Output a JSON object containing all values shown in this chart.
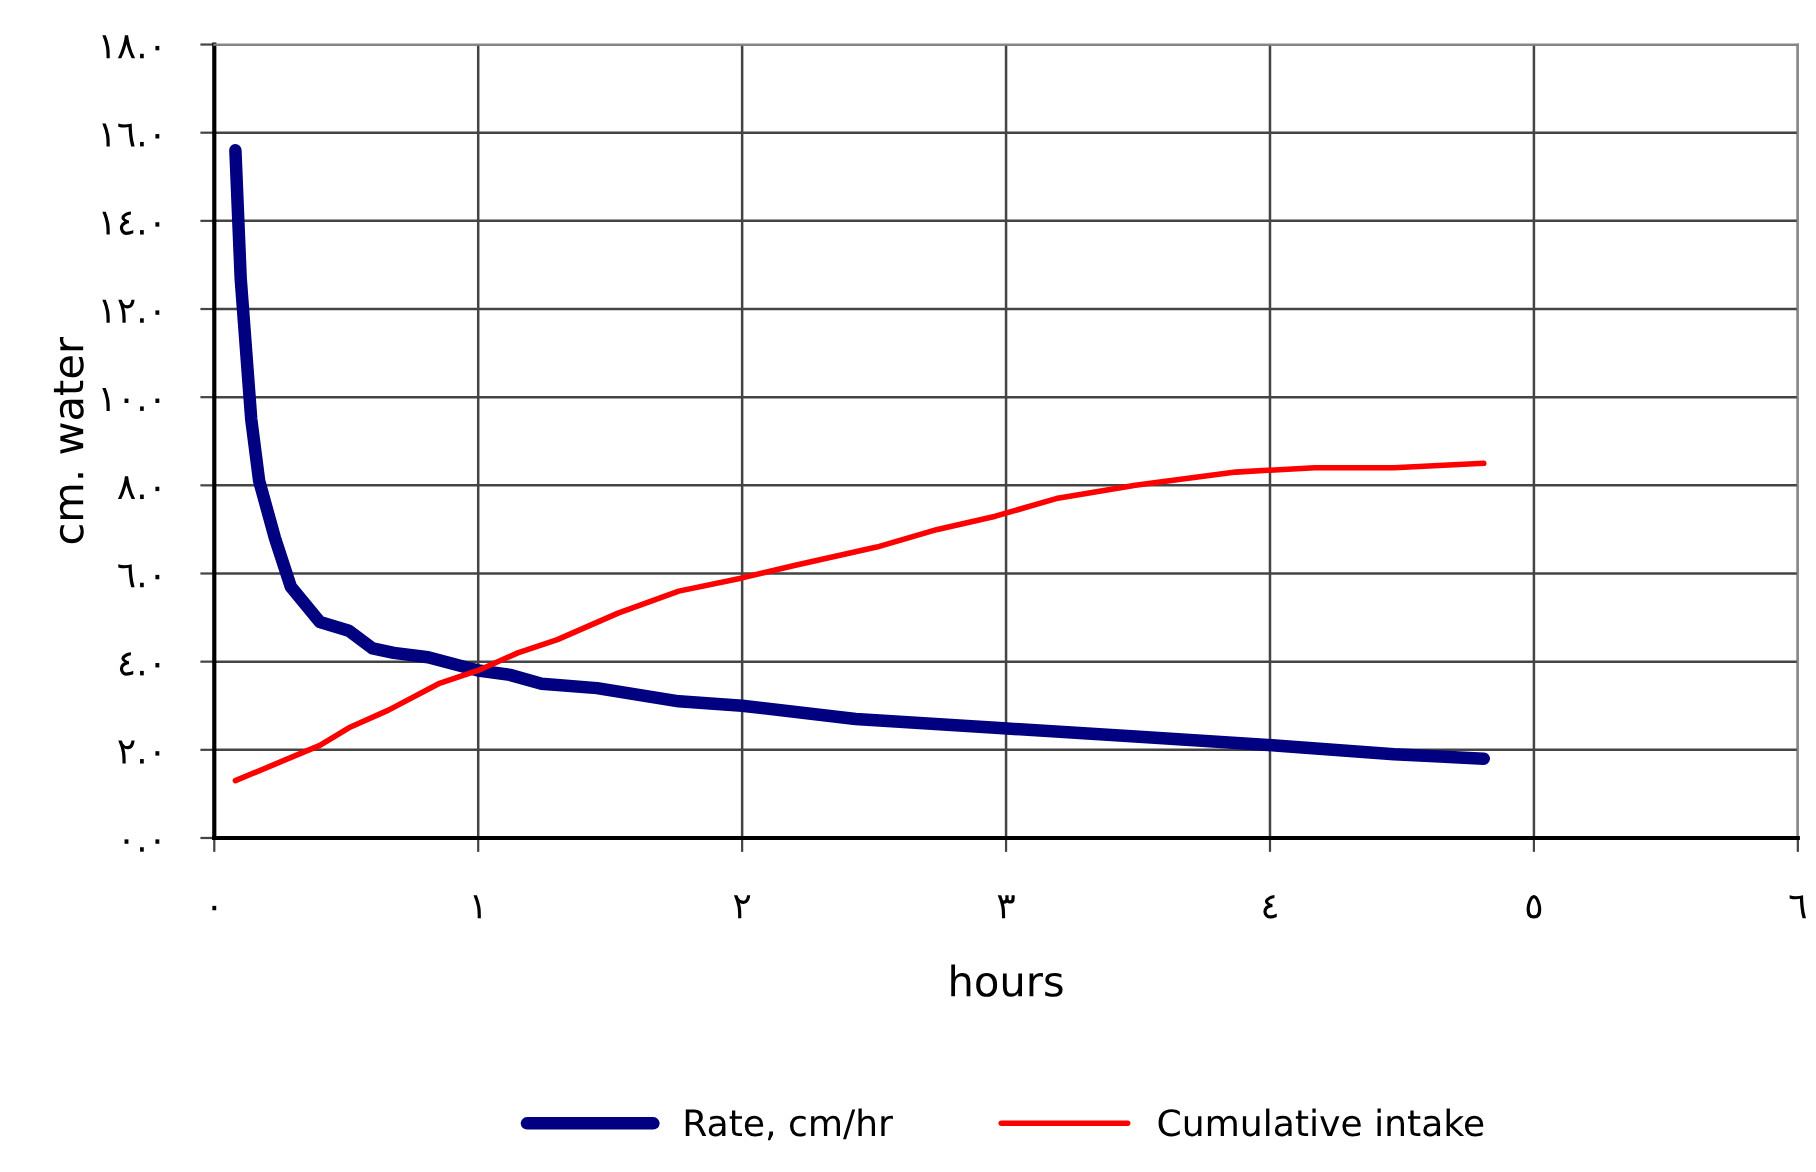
{
  "chart_data": {
    "type": "line",
    "xlabel": "hours",
    "ylabel": "cm. water",
    "xlim": [
      0,
      6
    ],
    "ylim": [
      0,
      18
    ],
    "xticks": [
      {
        "value": 0,
        "label": "٠"
      },
      {
        "value": 1,
        "label": "١"
      },
      {
        "value": 2,
        "label": "٢"
      },
      {
        "value": 3,
        "label": "٣"
      },
      {
        "value": 4,
        "label": "٤"
      },
      {
        "value": 5,
        "label": "٥"
      },
      {
        "value": 6,
        "label": "٦"
      }
    ],
    "yticks": [
      {
        "value": 0,
        "label": "٠.٠"
      },
      {
        "value": 2,
        "label": "٢.٠"
      },
      {
        "value": 4,
        "label": "٤.٠"
      },
      {
        "value": 6,
        "label": "٦.٠"
      },
      {
        "value": 8,
        "label": "٨.٠"
      },
      {
        "value": 10,
        "label": "١٠.٠"
      },
      {
        "value": 12,
        "label": "١٢.٠"
      },
      {
        "value": 14,
        "label": "١٤.٠"
      },
      {
        "value": 16,
        "label": "١٦.٠"
      },
      {
        "value": 18,
        "label": "١٨.٠"
      }
    ],
    "grid": true,
    "legend": "bottom",
    "marker": "none",
    "line_style": "solid",
    "series": [
      {
        "name": "Rate, cm/hr",
        "color": "#000080",
        "x": [
          0.08,
          0.1,
          0.14,
          0.17,
          0.23,
          0.29,
          0.4,
          0.51,
          0.6,
          0.68,
          0.81,
          1.0,
          1.12,
          1.24,
          1.45,
          1.76,
          2.0,
          2.43,
          2.96,
          3.49,
          4.02,
          4.47,
          4.81
        ],
        "values": [
          15.6,
          12.7,
          9.5,
          8.1,
          6.8,
          5.7,
          4.9,
          4.7,
          4.3,
          4.2,
          4.1,
          3.8,
          3.7,
          3.5,
          3.4,
          3.1,
          3.0,
          2.7,
          2.5,
          2.3,
          2.1,
          1.9,
          1.8
        ]
      },
      {
        "name": "Cumulative intake",
        "color": "#ff0000",
        "x": [
          0.08,
          0.4,
          0.51,
          0.66,
          0.85,
          1.0,
          1.15,
          1.3,
          1.53,
          1.76,
          2.0,
          2.21,
          2.51,
          2.74,
          2.96,
          3.19,
          3.49,
          3.87,
          4.17,
          4.47,
          4.81
        ],
        "values": [
          1.3,
          2.1,
          2.5,
          2.9,
          3.5,
          3.8,
          4.2,
          4.5,
          5.1,
          5.6,
          5.9,
          6.2,
          6.6,
          7.0,
          7.3,
          7.7,
          8.0,
          8.3,
          8.4,
          8.4,
          8.5
        ]
      }
    ]
  }
}
